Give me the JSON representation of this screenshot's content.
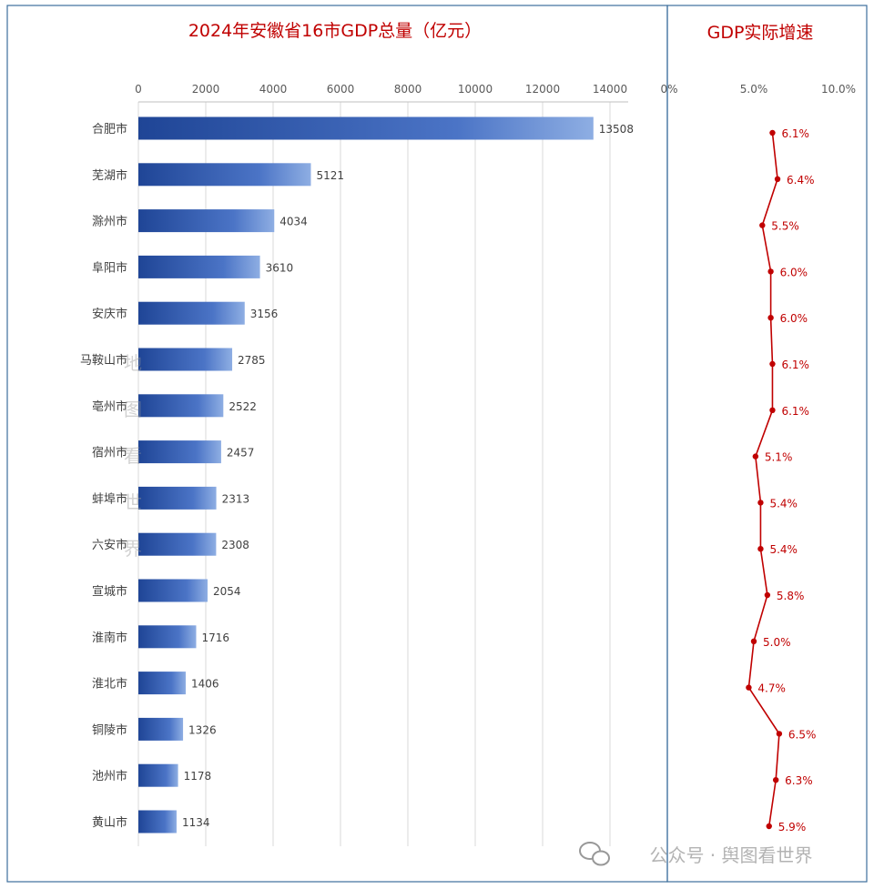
{
  "chart_data": [
    {
      "type": "bar",
      "orientation": "horizontal",
      "title": "2024年安徽省16市GDP总量（亿元）",
      "categories": [
        "合肥市",
        "芜湖市",
        "滁州市",
        "阜阳市",
        "安庆市",
        "马鞍山市",
        "亳州市",
        "宿州市",
        "蚌埠市",
        "六安市",
        "宣城市",
        "淮南市",
        "淮北市",
        "铜陵市",
        "池州市",
        "黄山市"
      ],
      "values": [
        13508,
        5121,
        4034,
        3610,
        3156,
        2785,
        2522,
        2457,
        2313,
        2308,
        2054,
        1716,
        1406,
        1326,
        1178,
        1134
      ],
      "value_labels": [
        "13508",
        "5121",
        "4034",
        "3610",
        "3156",
        "2785",
        "2522",
        "2457",
        "2313",
        "2308",
        "2054",
        "1716",
        "1406",
        "1326",
        "1178",
        "1134"
      ],
      "xticks": [
        "0",
        "2000",
        "4000",
        "6000",
        "8000",
        "10000",
        "12000",
        "14000"
      ],
      "xlim": [
        0,
        15000
      ],
      "axis_position": "top",
      "grid": true,
      "color": "#3a62b4"
    },
    {
      "type": "line",
      "orientation": "vertical",
      "title": "GDP实际增速",
      "categories": [
        "合肥市",
        "芜湖市",
        "滁州市",
        "阜阳市",
        "安庆市",
        "马鞍山市",
        "亳州市",
        "宿州市",
        "蚌埠市",
        "六安市",
        "宣城市",
        "淮南市",
        "淮北市",
        "铜陵市",
        "池州市",
        "黄山市"
      ],
      "values": [
        6.1,
        6.4,
        5.5,
        6.0,
        6.0,
        6.1,
        6.1,
        5.1,
        5.4,
        5.4,
        5.8,
        5.0,
        4.7,
        6.5,
        6.3,
        5.9
      ],
      "value_labels": [
        "6.1%",
        "6.4%",
        "5.5%",
        "6.0%",
        "6.0%",
        "6.1%",
        "6.1%",
        "5.1%",
        "5.4%",
        "5.4%",
        "5.8%",
        "5.0%",
        "4.7%",
        "6.5%",
        "6.3%",
        "5.9%"
      ],
      "xticks": [
        "0%",
        "5.0%",
        "10.0%"
      ],
      "xlim": [
        0,
        10
      ],
      "axis_position": "top",
      "grid": false,
      "color": "#c00000"
    }
  ],
  "watermark": {
    "vertical_text": [
      "地",
      "图",
      "看",
      "世",
      "界"
    ],
    "footer_text": "公众号 · 舆图看世界",
    "icon": "wechat-icon"
  }
}
